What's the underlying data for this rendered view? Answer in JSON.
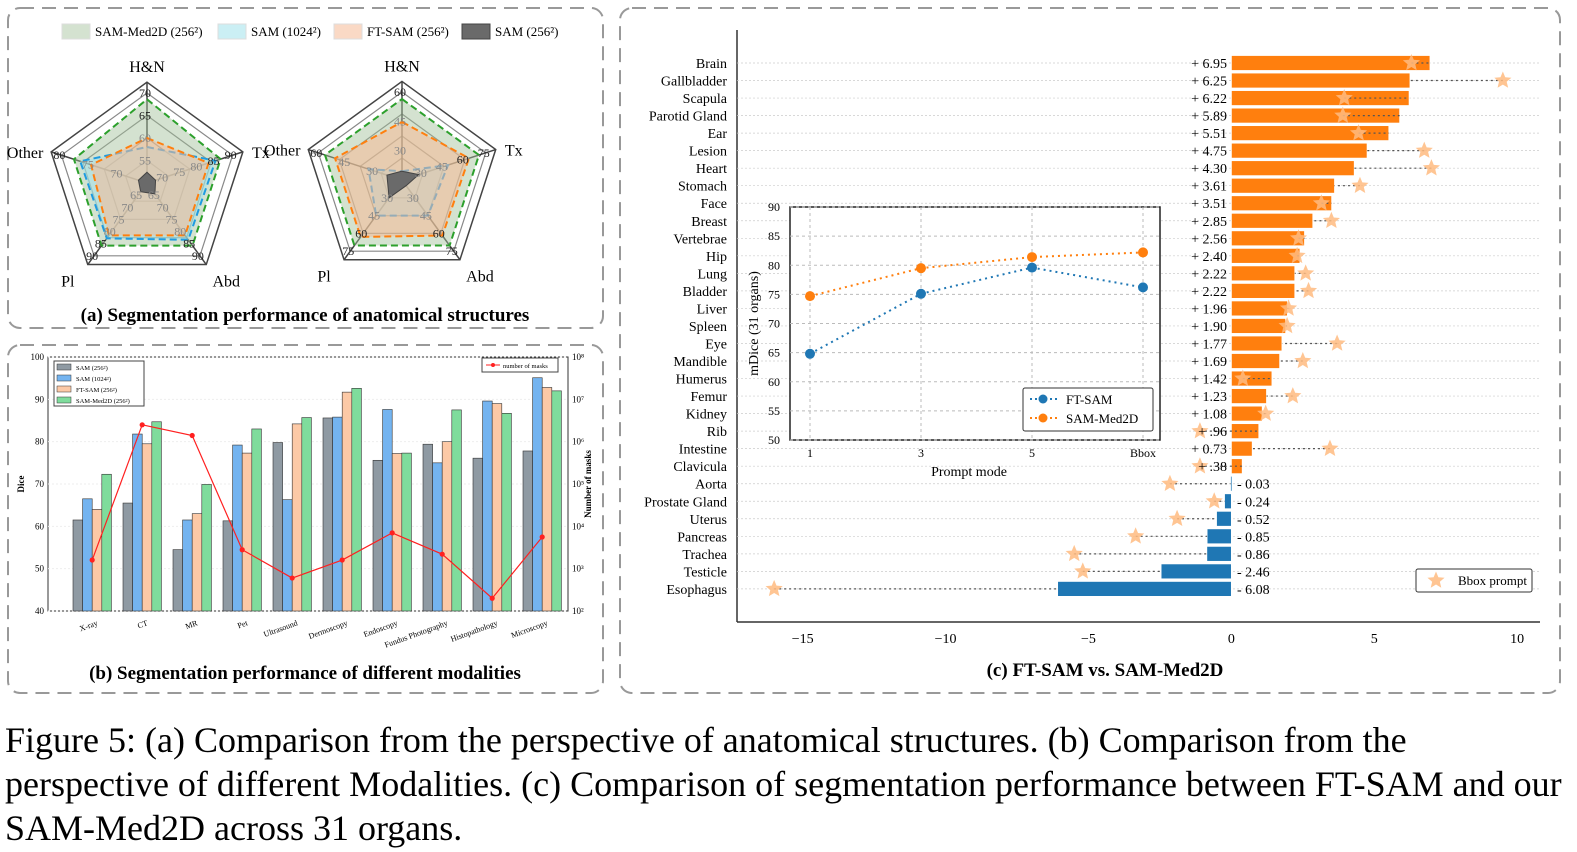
{
  "panel_a": {
    "caption": "(a) Segmentation performance of anatomical structures",
    "legend": [
      "SAM-Med2D (256²)",
      "SAM (1024²)",
      "FT-SAM (256²)",
      "SAM (256²)"
    ],
    "colors": {
      "SAM-Med2D": "#2ca02c",
      "SAM1024": "#1f9be0",
      "FT-SAM": "#ff7f0e",
      "SAM256": "#555555"
    }
  },
  "panel_b": {
    "caption": "(b) Segmentation performance of different modalities"
  },
  "panel_c": {
    "caption": "(c) FT-SAM   vs.  SAM-Med2D"
  },
  "figure_caption": "Figure 5: (a) Comparison from the perspective of anatomical structures. (b) Comparison from the perspective of different Modalities. (c) Comparison of segmentation performance between FT-SAM and our SAM-Med2D across 31 organs.",
  "chart_data": [
    {
      "type": "radar",
      "axes": [
        "H&N",
        "Tx",
        "Abd",
        "Pl",
        "Other"
      ],
      "axis_ranges": [
        [
          50,
          70
        ],
        [
          65,
          90
        ],
        [
          60,
          90
        ],
        [
          60,
          90
        ],
        [
          65,
          80
        ]
      ],
      "axis_ticks": [
        [
          55,
          60,
          65,
          70
        ],
        [
          70,
          75,
          80,
          85,
          90
        ],
        [
          65,
          70,
          75,
          80,
          85,
          90
        ],
        [
          65,
          70,
          75,
          80,
          85,
          90
        ],
        [
          70,
          75,
          80
        ]
      ],
      "series": [
        {
          "name": "SAM-Med2D (256²)",
          "values": [
            68.6,
            86.5,
            85.8,
            85.8,
            77.8
          ]
        },
        {
          "name": "SAM (1024²)",
          "values": [
            58,
            85,
            83.4,
            82.8,
            76.7
          ]
        },
        {
          "name": "FT-SAM (256²)",
          "values": [
            60,
            83,
            81.6,
            81.6,
            74.8
          ]
        },
        {
          "name": "SAM (256²)",
          "values": [
            52.4,
            67.5,
            64.5,
            63.6,
            66.5
          ]
        }
      ]
    },
    {
      "type": "radar",
      "axes": [
        "H&N",
        "Tx",
        "Abd",
        "Pl",
        "Other"
      ],
      "axis_ranges": [
        [
          15,
          60
        ],
        [
          15,
          75
        ],
        [
          15,
          75
        ],
        [
          15,
          75
        ],
        [
          15,
          60
        ]
      ],
      "axis_ticks": [
        [
          30,
          45,
          60
        ],
        [
          30,
          45,
          60,
          75
        ],
        [
          30,
          45,
          60,
          75
        ],
        [
          30,
          45,
          60,
          75
        ],
        [
          30,
          45,
          60
        ]
      ],
      "series": [
        {
          "name": "SAM-Med2D (256²)",
          "values": [
            56.4,
            70.2,
            70.2,
            70.2,
            56.4
          ]
        },
        {
          "name": "SAM (1024²)",
          "values": [
            19.5,
            48,
            45,
            45,
            33
          ]
        },
        {
          "name": "FT-SAM (256²)",
          "values": [
            44.7,
            63,
            61.8,
            63,
            51
          ]
        },
        {
          "name": "SAM (256²)",
          "values": [
            19.5,
            27,
            19.8,
            30,
            23.1
          ]
        }
      ]
    },
    {
      "type": "bar",
      "categories": [
        "X-ray",
        "CT",
        "MR",
        "Pet",
        "Ultrasound",
        "Dermoscopy",
        "Endoscopy",
        "Fundus Photography",
        "Histopathology",
        "Microscopy"
      ],
      "ylabel": "Dice",
      "ylim": [
        40,
        100
      ],
      "yticks": [
        40,
        50,
        60,
        70,
        80,
        90,
        100
      ],
      "y2label": "Number of masks",
      "y2lim": [
        100,
        100000000
      ],
      "y2scale": "log",
      "y2ticks": [
        "10²",
        "10³",
        "10⁴",
        "10⁵",
        "10⁶",
        "10⁷",
        "10⁸"
      ],
      "series": [
        {
          "name": "SAM (256²)",
          "color": "#8f9aa3",
          "values": [
            61.5,
            65.5,
            54.5,
            61.3,
            79.8,
            85.6,
            75.6,
            79.4,
            76.1,
            77.8
          ]
        },
        {
          "name": "SAM (1024²)",
          "color": "#74b4f0",
          "values": [
            66.5,
            81.8,
            61.5,
            79.2,
            66.3,
            85.8,
            87.6,
            75,
            89.6,
            95.1
          ]
        },
        {
          "name": "FT-SAM (256²)",
          "color": "#fcc9a6",
          "values": [
            64,
            79.5,
            63,
            77.3,
            84.2,
            91.7,
            77.2,
            80,
            89,
            92.8
          ]
        },
        {
          "name": "SAM-Med2D (256²)",
          "color": "#7fdc9c",
          "values": [
            72.3,
            84.7,
            69.9,
            83,
            85.7,
            92.6,
            77.3,
            87.5,
            86.7,
            92
          ]
        }
      ],
      "line": {
        "name": "number of masks",
        "color": "#ff2020",
        "values": [
          1600,
          2500000,
          1400000,
          2800,
          600,
          1600,
          7000,
          2200,
          200,
          5600
        ]
      },
      "grid": true,
      "legend": "top-left"
    },
    {
      "type": "bar",
      "orientation": "horizontal",
      "categories": [
        "Brain",
        "Gallbladder",
        "Scapula",
        "Parotid Gland",
        "Ear",
        "Lesion",
        "Heart",
        "Stomach",
        "Face",
        "Breast",
        "Vertebrae",
        "Hip",
        "Lung",
        "Bladder",
        "Liver",
        "Spleen",
        "Eye",
        "Mandible",
        "Humerus",
        "Femur",
        "Kidney",
        "Rib",
        "Intestine",
        "Clavicula",
        "Aorta",
        "Prostate Gland",
        "Uterus",
        "Pancreas",
        "Trachea",
        "Testicle",
        "Esophagus"
      ],
      "values": [
        6.95,
        6.25,
        6.22,
        5.89,
        5.51,
        4.75,
        4.3,
        3.61,
        3.51,
        2.85,
        2.56,
        2.4,
        2.22,
        2.22,
        1.96,
        1.9,
        1.77,
        1.69,
        1.42,
        1.23,
        1.08,
        0.96,
        0.73,
        0.38,
        -0.03,
        -0.24,
        -0.52,
        -0.85,
        -0.86,
        -2.46,
        -6.08
      ],
      "value_labels": [
        "+ 6.95",
        "+ 6.25",
        "+ 6.22",
        "+ 5.89",
        "+ 5.51",
        "+ 4.75",
        "+ 4.30",
        "+ 3.61",
        "+ 3.51",
        "+ 2.85",
        "+ 2.56",
        "+ 2.40",
        "+ 2.22",
        "+ 2.22",
        "+ 1.96",
        "+ 1.90",
        "+ 1.77",
        "+ 1.69",
        "+ 1.42",
        "+ 1.23",
        "+ 1.08",
        "+ .96",
        "+ 0.73",
        "+ .38",
        "- 0.03",
        "- 0.24",
        "- 0.52",
        "- 0.85",
        "- 0.86",
        "- 2.46",
        "- 6.08"
      ],
      "bbox_prompt": {
        "name": "Bbox prompt",
        "values": [
          6.3,
          9.5,
          3.95,
          3.9,
          4.45,
          6.75,
          7.0,
          4.5,
          3.15,
          3.5,
          2.35,
          2.3,
          2.6,
          2.7,
          2.0,
          1.95,
          3.7,
          2.5,
          0.4,
          2.15,
          1.2,
          -1.1,
          3.45,
          -1.1,
          -2.15,
          -0.6,
          -1.9,
          -3.35,
          -5.5,
          -5.2,
          -16.0
        ],
        "color": "#ffbb80"
      },
      "colors": {
        "positive": "#ff7f0e",
        "negative": "#1f77b4"
      },
      "xlim": [
        -17.3,
        10.8
      ],
      "xticks": [
        -15,
        -10,
        -5,
        0,
        5,
        10
      ],
      "xtick_labels": [
        "−15",
        "−10",
        "−5",
        "0",
        "5",
        "10"
      ],
      "legend": "bottom-right"
    },
    {
      "type": "line",
      "categories": [
        "1",
        "3",
        "5",
        "Bbox"
      ],
      "xlabel": "Prompt mode",
      "ylabel": "mDice (31 organs)",
      "ylim": [
        50,
        90
      ],
      "yticks": [
        50,
        55,
        60,
        65,
        70,
        75,
        80,
        85,
        90
      ],
      "series": [
        {
          "name": "FT-SAM",
          "color": "#1f77b4",
          "values": [
            64.8,
            75.1,
            79.6,
            76.2
          ]
        },
        {
          "name": "SAM-Med2D",
          "color": "#ff7f0e",
          "values": [
            74.7,
            79.5,
            81.4,
            82.2
          ]
        }
      ],
      "grid": true,
      "legend": "bottom-right"
    }
  ]
}
